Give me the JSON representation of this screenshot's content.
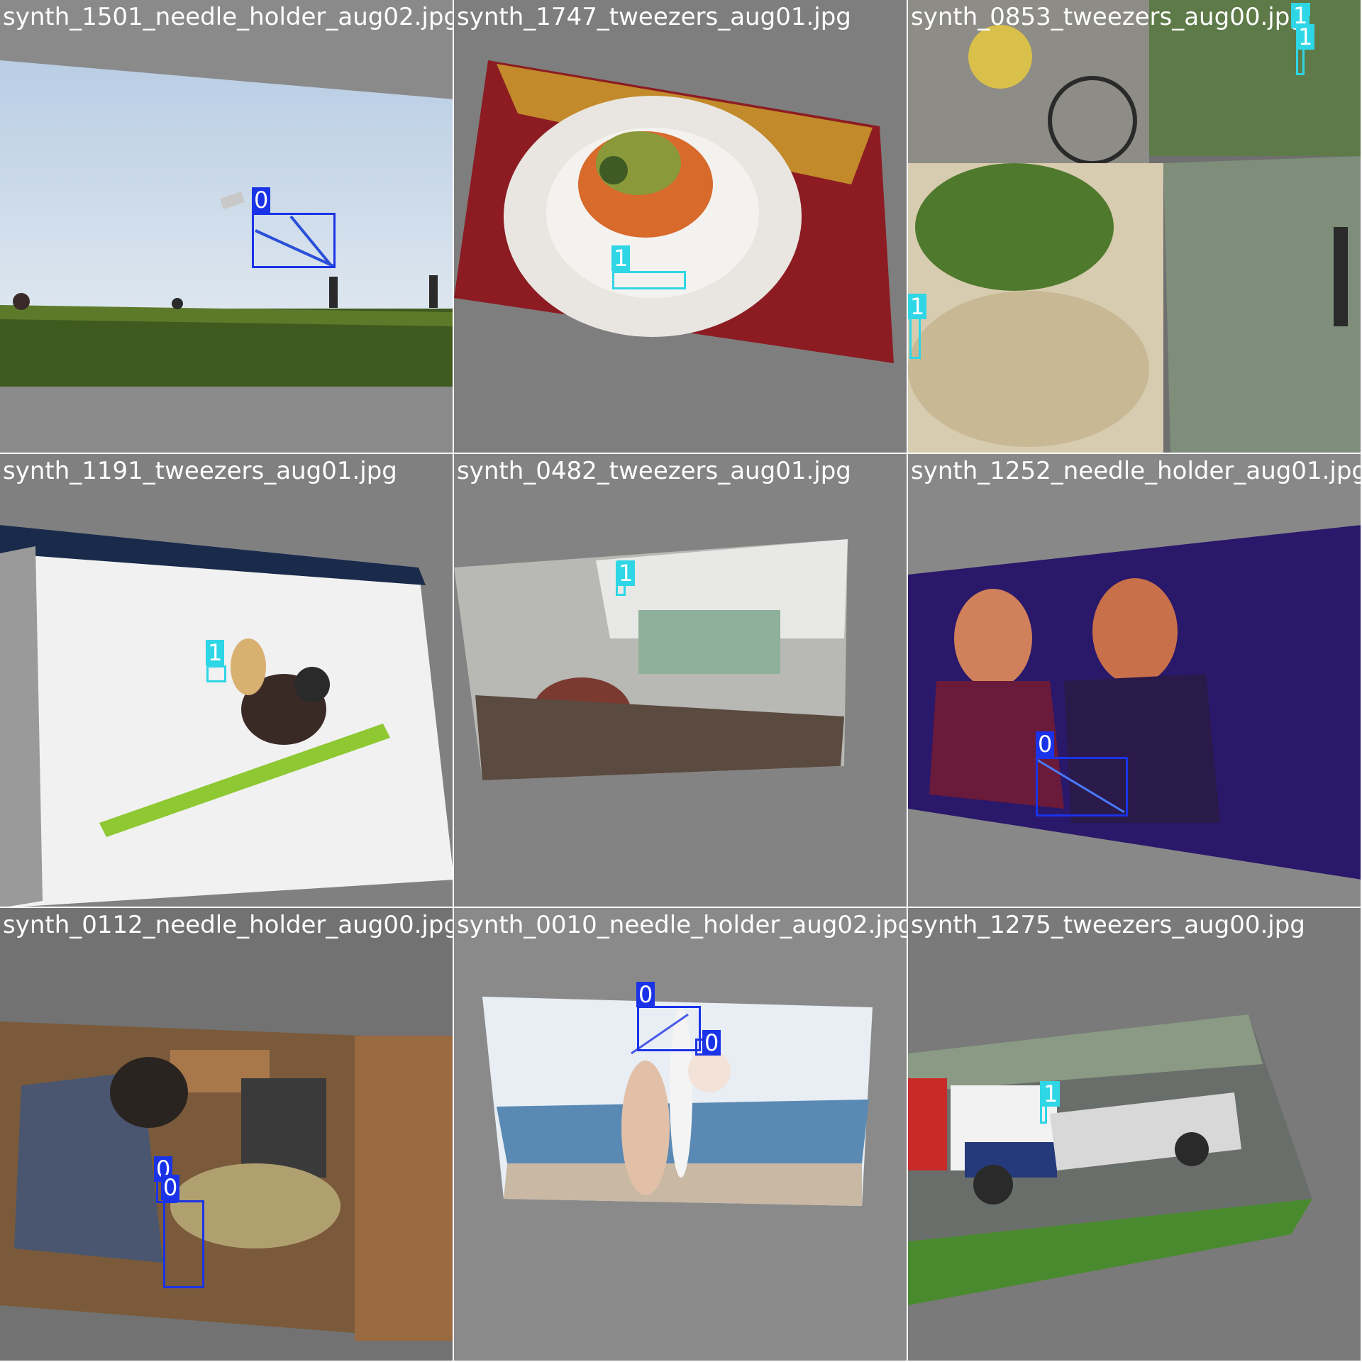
{
  "mosaic": {
    "tiles": [
      {
        "filename": "synth_1501_needle_holder_aug02.jpg",
        "labels": [
          "0"
        ]
      },
      {
        "filename": "synth_1747_tweezers_aug01.jpg",
        "labels": [
          "1"
        ]
      },
      {
        "filename": "synth_0853_tweezers_aug00.jpg",
        "labels": [
          "1",
          "1",
          "1"
        ]
      },
      {
        "filename": "synth_1191_tweezers_aug01.jpg",
        "labels": [
          "1"
        ]
      },
      {
        "filename": "synth_0482_tweezers_aug01.jpg",
        "labels": [
          "1"
        ]
      },
      {
        "filename": "synth_1252_needle_holder_aug01.jpg",
        "labels": [
          "0"
        ]
      },
      {
        "filename": "synth_0112_needle_holder_aug00.jpg",
        "labels": [
          "0",
          "0"
        ]
      },
      {
        "filename": "synth_0010_needle_holder_aug02.jpg",
        "labels": [
          "0",
          "0"
        ]
      },
      {
        "filename": "synth_1275_tweezers_aug00.jpg",
        "labels": [
          "1"
        ]
      }
    ]
  },
  "colors": {
    "class_0": "#1a33e8",
    "class_1": "#2ed6e6",
    "background": "#7a7a7a"
  }
}
